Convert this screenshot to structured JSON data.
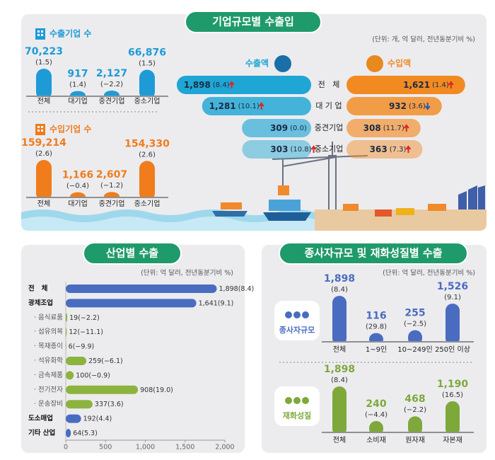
{
  "header": {
    "title": "기업규모별 수출입",
    "unit": "(단위: 개, 억 달러, 전년동분기비 %)"
  },
  "sections": [
    {
      "title": "산업별 수출",
      "unit": "(단위: 억 달러, 전년동분기비 %)"
    },
    {
      "title": "종사자규모 및 재화성질별 수출",
      "unit": "(단위: 억 달러, 전년동분기비 %)"
    }
  ],
  "chart_data": [
    {
      "type": "bar",
      "title": "수출기업 수",
      "color": "#1e9bd7",
      "categories": [
        "전체",
        "대기업",
        "중견기업",
        "중소기업"
      ],
      "values": [
        70223,
        917,
        2127,
        66876
      ],
      "value_labels": [
        "70,223",
        "917",
        "2,127",
        "66,876"
      ],
      "change_labels": [
        "(1.5)",
        "(1.4)",
        "(−2.2)",
        "(1.5)"
      ]
    },
    {
      "type": "bar",
      "title": "수입기업 수",
      "color": "#f07c1c",
      "categories": [
        "전체",
        "대기업",
        "중견기업",
        "중소기업"
      ],
      "values": [
        159214,
        1166,
        2607,
        154330
      ],
      "value_labels": [
        "159,214",
        "1,166",
        "2,607",
        "154,330"
      ],
      "change_labels": [
        "(2.6)",
        "(−0.4)",
        "(−1.2)",
        "(2.6)"
      ]
    },
    {
      "type": "funnel",
      "categories": [
        "전   체",
        "대 기 업",
        "중견기업",
        "중소기업"
      ],
      "series": [
        {
          "name": "수출액",
          "color": "#1fa6d4",
          "values": [
            1898,
            1281,
            309,
            303
          ],
          "value_labels": [
            "1,898",
            "1,281",
            "309",
            "303"
          ],
          "change_labels": [
            "(8.4)",
            "(10.1)",
            "(0.0)",
            "(10.8)"
          ],
          "trend": [
            "up",
            "up",
            null,
            "up"
          ]
        },
        {
          "name": "수입액",
          "color": "#f28a22",
          "values": [
            1621,
            932,
            308,
            363
          ],
          "value_labels": [
            "1,621",
            "932",
            "308",
            "363"
          ],
          "change_labels": [
            "(1.4)",
            "(3.6)",
            "(11.7)",
            "(7.3)"
          ],
          "trend": [
            "up",
            "down",
            "up",
            "up"
          ]
        }
      ]
    },
    {
      "type": "hbar",
      "categories": [
        "전   체",
        "광제조업",
        "· 음식료품",
        "· 섬유의복",
        "· 목재종이",
        "· 석유화학",
        "· 금속제품",
        "· 전기전자",
        "· 운송장비",
        "도소매업",
        "기타 산업"
      ],
      "values": [
        1898,
        1641,
        19,
        12,
        6,
        259,
        100,
        908,
        337,
        192,
        64
      ],
      "value_labels": [
        "1,898",
        "1,641",
        "19",
        "12",
        "6",
        "259",
        "100",
        "908",
        "337",
        "192",
        "64"
      ],
      "change_labels": [
        "(8.4)",
        "(9.1)",
        "(−2.2)",
        "(−11.1)",
        "(−9.9)",
        "(−6.1)",
        "(−0.9)",
        "(19.0)",
        "(3.6)",
        "(4.4)",
        "(5.3)"
      ],
      "colors": [
        "#4a6cc0",
        "#4a6cc0",
        "#8db33f",
        "#8db33f",
        "#8db33f",
        "#8db33f",
        "#8db33f",
        "#8db33f",
        "#8db33f",
        "#4a6cc0",
        "#4a6cc0"
      ],
      "xlim": [
        0,
        2000
      ],
      "xticks": [
        0,
        500,
        {
          "value": 1000,
          "label": "1,000"
        },
        {
          "value": 1500,
          "label": "1,500"
        },
        {
          "value": 2000,
          "label": "2,000"
        }
      ]
    },
    {
      "type": "bar",
      "title": "종사자규모",
      "color": "#4a6cc0",
      "categories": [
        "전체",
        "1~9인",
        "10~249인",
        "250인 이상"
      ],
      "values": [
        1898,
        116,
        255,
        1526
      ],
      "value_labels": [
        "1,898",
        "116",
        "255",
        "1,526"
      ],
      "change_labels": [
        "(8.4)",
        "(29.8)",
        "(−2.5)",
        "(9.1)"
      ]
    },
    {
      "type": "bar",
      "title": "재화성질",
      "color": "#7ea93a",
      "categories": [
        "전체",
        "소비재",
        "원자재",
        "자본재"
      ],
      "values": [
        1898,
        240,
        468,
        1190
      ],
      "value_labels": [
        "1,898",
        "240",
        "468",
        "1,190"
      ],
      "change_labels": [
        "(8.4)",
        "(−4.4)",
        "(−2.2)",
        "(16.5)"
      ]
    }
  ]
}
